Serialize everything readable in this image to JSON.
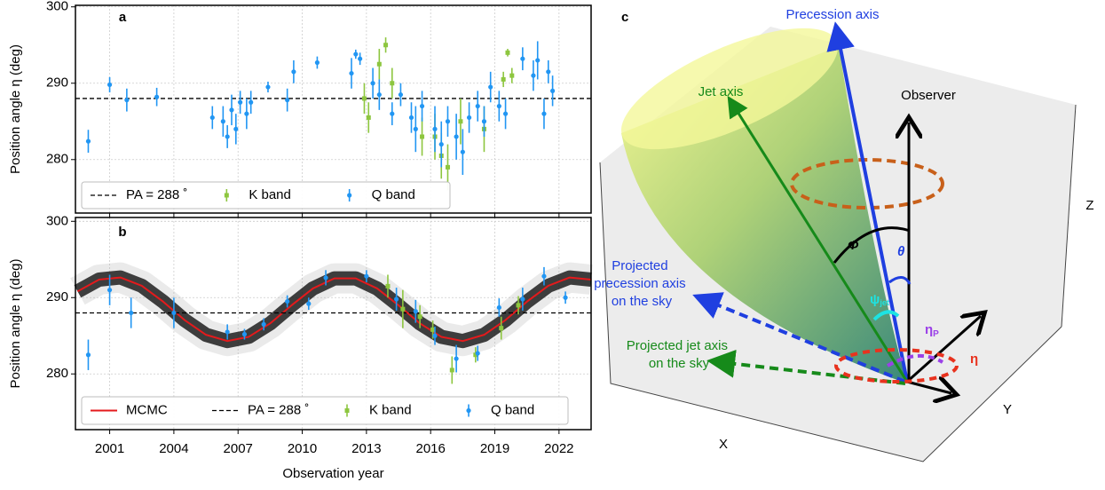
{
  "chart_data": [
    {
      "type": "scatter",
      "panel_label": "a",
      "y_label": "Position angle η (deg)",
      "xlim": [
        1999.4,
        2023.5
      ],
      "ylim": [
        273,
        300.2
      ],
      "xticks": [
        2001,
        2004,
        2007,
        2010,
        2013,
        2016,
        2019,
        2022
      ],
      "show_xtick_labels": false,
      "yticks": [
        280,
        290,
        300
      ],
      "grid": true,
      "series": [
        {
          "name": "PA = 288 ˚",
          "type": "hline",
          "color": "#000000",
          "values": [
            288
          ]
        },
        {
          "name": "K band",
          "type": "errorbar",
          "marker": "square",
          "color": "#8dc63f",
          "x": [
            2012.9,
            2013.1,
            2013.6,
            2013.9,
            2014.2,
            2015.6,
            2016.2,
            2016.5,
            2016.8,
            2017.4,
            2018.5,
            2019.4,
            2019.6,
            2019.8
          ],
          "values": [
            288,
            285.5,
            292.5,
            295,
            290,
            283,
            283,
            280.5,
            279,
            285,
            284,
            290.5,
            294,
            291
          ],
          "errors": [
            2,
            2,
            2,
            1,
            2,
            2.5,
            3,
            3,
            3,
            3,
            3,
            1,
            0.5,
            1
          ]
        },
        {
          "name": "Q band",
          "type": "errorbar",
          "marker": "circle",
          "color": "#2196f3",
          "x": [
            2000.0,
            2001.0,
            2001.8,
            2003.2,
            2005.8,
            2006.3,
            2006.5,
            2006.7,
            2006.9,
            2007.1,
            2007.4,
            2007.6,
            2008.4,
            2009.3,
            2009.6,
            2010.7,
            2012.3,
            2012.5,
            2012.7,
            2013.3,
            2013.6,
            2014.2,
            2014.6,
            2015.1,
            2015.3,
            2015.6,
            2016.2,
            2016.5,
            2016.8,
            2017.2,
            2017.5,
            2017.8,
            2018.2,
            2018.5,
            2018.8,
            2019.2,
            2019.5,
            2020.3,
            2020.8,
            2021.0,
            2021.3,
            2021.5,
            2021.7
          ],
          "values": [
            282.4,
            289.8,
            287.8,
            288.2,
            285.5,
            285,
            283,
            286.5,
            284,
            287.5,
            286,
            287.5,
            289.5,
            287.8,
            291.5,
            292.7,
            291.3,
            293.8,
            293.2,
            290,
            288.5,
            286,
            288.5,
            285.5,
            284,
            287,
            284,
            282,
            285,
            283,
            281,
            285.5,
            287,
            285,
            289.5,
            287,
            286,
            293.2,
            291,
            293,
            286,
            291.5,
            289
          ],
          "errors": [
            1.5,
            1,
            1.5,
            1.2,
            1.5,
            2,
            1.5,
            2,
            2,
            1.5,
            2,
            1.5,
            0.7,
            1.5,
            1.5,
            0.8,
            2,
            0.6,
            0.8,
            2,
            2,
            1.5,
            1.5,
            2,
            3,
            2,
            3,
            3,
            2,
            3,
            3,
            2,
            2,
            2,
            2,
            2,
            2,
            1.5,
            2,
            2.5,
            2,
            1.5,
            2
          ]
        }
      ]
    },
    {
      "type": "scatter",
      "panel_label": "b",
      "y_label": "Position angle η (deg)",
      "x_label": "Observation year",
      "xlim": [
        1999.4,
        2023.5
      ],
      "ylim": [
        272.7,
        300.5
      ],
      "xticks": [
        2001,
        2004,
        2007,
        2010,
        2013,
        2016,
        2019,
        2022
      ],
      "show_xtick_labels": true,
      "yticks": [
        280,
        290,
        300
      ],
      "grid": true,
      "series": [
        {
          "name": "MCMC",
          "type": "line",
          "color": "#e41a1c",
          "x": [
            1999.5,
            2000.5,
            2001.5,
            2002.5,
            2003.5,
            2004.5,
            2005.5,
            2006.5,
            2007.5,
            2008.5,
            2009.5,
            2010.5,
            2011.5,
            2012.5,
            2013.5,
            2014.5,
            2015.5,
            2016.5,
            2017.5,
            2018.5,
            2019.5,
            2020.5,
            2021.5,
            2022.5,
            2023.5
          ],
          "values": [
            290.81,
            292.36,
            292.64,
            291.55,
            289.47,
            287.06,
            285.13,
            284.31,
            284.86,
            286.62,
            288.99,
            291.2,
            292.52,
            292.52,
            291.2,
            288.99,
            286.62,
            284.86,
            284.31,
            285.13,
            287.06,
            289.47,
            291.55,
            292.64,
            292.36
          ]
        },
        {
          "name": "PA = 288 ˚",
          "type": "hline",
          "color": "#000000",
          "values": [
            288
          ]
        },
        {
          "name": "K band",
          "type": "errorbar",
          "marker": "square",
          "color": "#8dc63f",
          "x": [
            2014.0,
            2014.7,
            2015.5,
            2016.1,
            2017.0,
            2018.1,
            2019.3,
            2020.1
          ],
          "values": [
            291.5,
            288.5,
            287.5,
            285.8,
            280.5,
            282.5,
            286,
            289
          ],
          "errors": [
            1.5,
            2.5,
            1.5,
            1.2,
            1.8,
            1,
            1.5,
            1.2
          ]
        },
        {
          "name": "Q band",
          "type": "errorbar",
          "marker": "circle",
          "color": "#2196f3",
          "x": [
            2000.0,
            2001.0,
            2002.0,
            2004.0,
            2006.5,
            2007.3,
            2008.2,
            2009.3,
            2010.3,
            2011.1,
            2013.0,
            2014.4,
            2015.3,
            2016.2,
            2017.2,
            2018.2,
            2019.2,
            2020.3,
            2021.3,
            2022.3
          ],
          "values": [
            282.5,
            291,
            288,
            288,
            285.5,
            285.2,
            286.5,
            289.5,
            289.2,
            292.6,
            292.8,
            289.8,
            288.2,
            285,
            282,
            282.7,
            288.7,
            289.8,
            292.8,
            290
          ],
          "errors": [
            2,
            2,
            2,
            2,
            1,
            0.7,
            0.8,
            0.8,
            0.8,
            1,
            0.8,
            1.5,
            1.5,
            1.2,
            1.8,
            1,
            1.2,
            1.5,
            1.2,
            0.8
          ]
        }
      ]
    }
  ],
  "diagram": {
    "panel_label": "c",
    "precession_axis": "Precession axis",
    "jet_axis": "Jet axis",
    "observer": "Observer",
    "projected_precession": [
      "Projected",
      "precession axis",
      "on the sky"
    ],
    "projected_jet": [
      "Projected jet axis",
      "on the sky"
    ],
    "phi": "Φ",
    "theta": "θ",
    "psi": "ψ",
    "psi_sub": "jet",
    "eta_p": "η",
    "eta_p_sub": "P",
    "eta": "η",
    "x_axis": "X",
    "y_axis": "Y",
    "z_axis": "Z"
  }
}
